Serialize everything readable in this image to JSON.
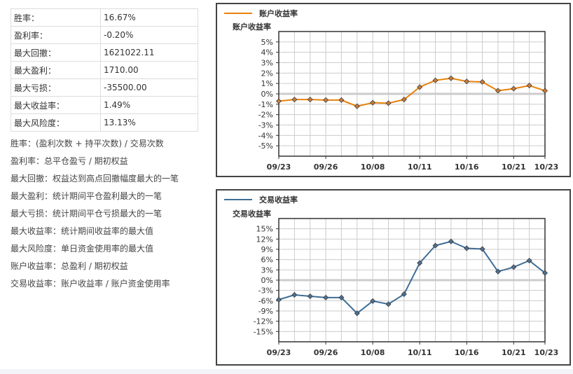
{
  "stats": [
    {
      "label": "胜率：",
      "value": "16.67%"
    },
    {
      "label": "盈利率：",
      "value": "-0.20%"
    },
    {
      "label": "最大回撤：",
      "value": "1621022.11"
    },
    {
      "label": "最大盈利：",
      "value": "1710.00"
    },
    {
      "label": "最大亏损：",
      "value": "-35500.00"
    },
    {
      "label": "最大收益率：",
      "value": "1.49%"
    },
    {
      "label": "最大风险度：",
      "value": "13.13%"
    }
  ],
  "notes": [
    "胜率：(盈利次数 + 持平次数) / 交易次数",
    "盈利率：总平仓盈亏 / 期初权益",
    "最大回撤：权益达到高点回撤幅度最大的一笔",
    "最大盈利：统计期间平仓盈利最大的一笔",
    "最大亏损：统计期间平仓亏损最大的一笔",
    "最大收益率：统计期间收益率的最大值",
    "最大风险度：单日资金使用率的最大值",
    "账户收益率：总盈利 / 期初权益",
    "交易收益率：账户收益率 / 账户资金使用率"
  ],
  "chart_data": [
    {
      "type": "line",
      "legend": "账户收益率",
      "ylabel": "账户收益率",
      "color": "#e8820c",
      "ylim": [
        -6,
        6
      ],
      "yticks": [
        5,
        4,
        3,
        2,
        1,
        0,
        -1,
        -2,
        -3,
        -4,
        -5
      ],
      "ytick_labels": [
        "5%",
        "4%",
        "3%",
        "2%",
        "1%",
        "0%",
        "-1%",
        "-2%",
        "-3%",
        "-4%",
        "-5%"
      ],
      "xtick_labels": [
        {
          "i": 0,
          "label": "09/23"
        },
        {
          "i": 3,
          "label": "09/26"
        },
        {
          "i": 6,
          "label": "10/08"
        },
        {
          "i": 9,
          "label": "10/11"
        },
        {
          "i": 12,
          "label": "10/16"
        },
        {
          "i": 15,
          "label": "10/21"
        },
        {
          "i": 17,
          "label": "10/23"
        }
      ],
      "values": [
        -0.7,
        -0.55,
        -0.55,
        -0.6,
        -0.6,
        -1.2,
        -0.85,
        -0.9,
        -0.55,
        0.65,
        1.3,
        1.5,
        1.2,
        1.15,
        0.3,
        0.5,
        0.8,
        0.3
      ],
      "grid": true
    },
    {
      "type": "line",
      "legend": "交易收益率",
      "ylabel": "交易收益率",
      "color": "#3f6e96",
      "ylim": [
        -18,
        18
      ],
      "yticks": [
        15,
        12,
        9,
        6,
        3,
        0,
        -3,
        -6,
        -9,
        -12,
        -15
      ],
      "ytick_labels": [
        "15%",
        "12%",
        "9%",
        "6%",
        "3%",
        "0%",
        "-3%",
        "-6%",
        "-9%",
        "-12%",
        "-15%"
      ],
      "xtick_labels": [
        {
          "i": 0,
          "label": "09/23"
        },
        {
          "i": 3,
          "label": "09/26"
        },
        {
          "i": 6,
          "label": "10/08"
        },
        {
          "i": 9,
          "label": "10/11"
        },
        {
          "i": 12,
          "label": "10/16"
        },
        {
          "i": 15,
          "label": "10/21"
        },
        {
          "i": 17,
          "label": "10/23"
        }
      ],
      "values": [
        -5.7,
        -4.3,
        -4.7,
        -5.1,
        -5.1,
        -9.7,
        -6.1,
        -7.0,
        -4.1,
        5.0,
        10.1,
        11.3,
        9.3,
        9.1,
        2.5,
        3.8,
        5.7,
        2.1
      ],
      "grid": true
    }
  ]
}
